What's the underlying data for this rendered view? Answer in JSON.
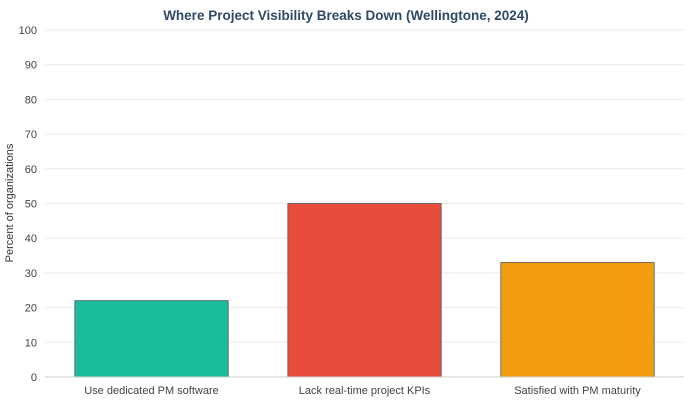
{
  "chart_data": {
    "type": "bar",
    "title": "Where Project Visibility Breaks Down (Wellingtone, 2024)",
    "xlabel": "",
    "ylabel": "Percent of organizations",
    "ylim": [
      0,
      100
    ],
    "yticks": [
      0,
      10,
      20,
      30,
      40,
      50,
      60,
      70,
      80,
      90,
      100
    ],
    "grid": true,
    "legend": "none",
    "categories": [
      "Use dedicated PM software",
      "Lack real-time project KPIs",
      "Satisfied with PM maturity"
    ],
    "values": [
      22,
      50,
      33
    ],
    "colors": [
      "#1abc9c",
      "#e74c3c",
      "#f39c12"
    ]
  }
}
